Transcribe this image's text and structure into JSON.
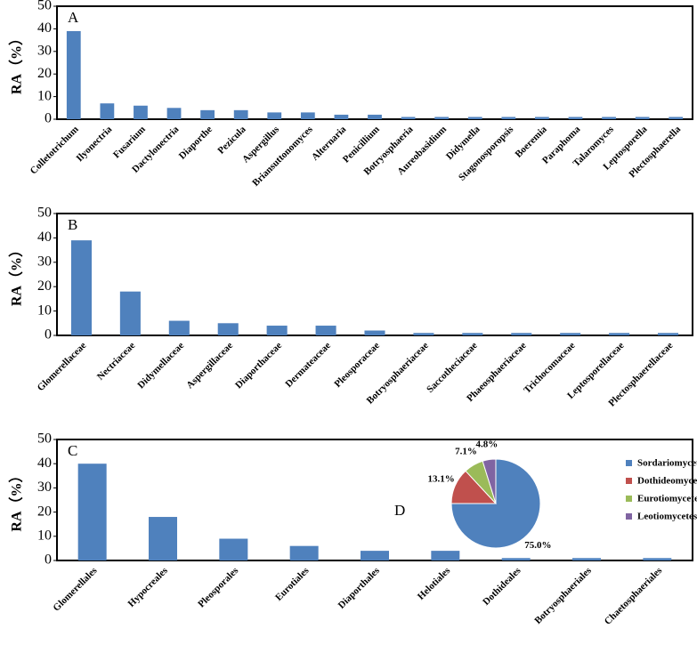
{
  "chart_data": [
    {
      "type": "bar",
      "label": "A",
      "ylabel": "RA（%）",
      "color": "#4f81bd",
      "categories": [
        "Colletotrichum",
        "Ilyonectria",
        "Fusarium",
        "Dactylonectria",
        "Diaporthe",
        "Pezicula",
        "Aspergillus",
        "Briansuttonomyces",
        "Alternaria",
        "Penicillium",
        "Botryosphaeria",
        "Aureobasidium",
        "Didymella",
        "Stagonosporopsis",
        "Boeremia",
        "Paraphoma",
        "Talaromyces",
        "Leptosporella",
        "Plectosphaerella"
      ],
      "values": [
        39,
        7,
        6,
        5,
        4,
        4,
        3,
        3,
        2,
        2,
        1,
        1,
        1,
        1,
        1,
        1,
        1,
        1,
        1
      ],
      "ylim": [
        0,
        50
      ],
      "yticks": [
        0,
        10,
        20,
        30,
        40,
        50
      ]
    },
    {
      "type": "bar",
      "label": "B",
      "ylabel": "RA（%）",
      "color": "#4f81bd",
      "categories": [
        "Glomerellaceae",
        "Nectriaceae",
        "Didymellaceae",
        "Aspergillaceae",
        "Diaporthaceae",
        "Dermateaceae",
        "Pleosporaceae",
        "Botryosphaeriaceae",
        "Saccotheciaceae",
        "Phaeosphaeriaceae",
        "Trichocomaceae",
        "Leptosporellaceae",
        "Plectosphaerellaceae"
      ],
      "values": [
        39,
        18,
        6,
        5,
        4,
        4,
        2,
        1,
        1,
        1,
        1,
        1,
        1
      ],
      "ylim": [
        0,
        50
      ],
      "yticks": [
        0,
        10,
        20,
        30,
        40,
        50
      ]
    },
    {
      "type": "bar",
      "label": "C",
      "ylabel": "RA（%）",
      "color": "#4f81bd",
      "categories": [
        "Glomerellales",
        "Hypocreales",
        "Pleosporales",
        "Eurotiales",
        "Diaporthales",
        "Helotiales",
        "Dothideales",
        "Botryosphaeriales",
        "Chaetosphaeriales"
      ],
      "values": [
        40,
        18,
        9,
        6,
        4,
        4,
        1,
        1,
        1
      ],
      "ylim": [
        0,
        50
      ],
      "yticks": [
        0,
        10,
        20,
        30,
        40,
        50
      ]
    },
    {
      "type": "pie",
      "label": "D",
      "categories": [
        "Sordariomycetes",
        "Dothideomycetes",
        "Eurotiomycetes",
        "Leotiomycetes"
      ],
      "values": [
        75.0,
        13.1,
        7.1,
        4.8
      ],
      "value_labels": [
        "75.0%",
        "13.1%",
        "7.1%",
        "4.8%"
      ],
      "colors": [
        "#4f81bd",
        "#c0504d",
        "#9bbb59",
        "#8064a2"
      ]
    }
  ]
}
